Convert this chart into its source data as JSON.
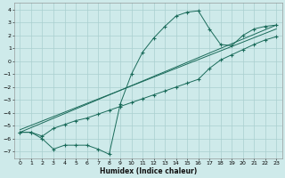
{
  "xlabel": "Humidex (Indice chaleur)",
  "bg_color": "#ceeaea",
  "grid_color": "#aacfcf",
  "line_color": "#1a6b5a",
  "xlim": [
    -0.5,
    23.5
  ],
  "ylim": [
    -7.5,
    4.5
  ],
  "xticks": [
    0,
    1,
    2,
    3,
    4,
    5,
    6,
    7,
    8,
    9,
    10,
    11,
    12,
    13,
    14,
    15,
    16,
    17,
    18,
    19,
    20,
    21,
    22,
    23
  ],
  "yticks": [
    -7,
    -6,
    -5,
    -4,
    -3,
    -2,
    -1,
    0,
    1,
    2,
    3,
    4
  ],
  "series1_x": [
    0,
    1,
    2,
    3,
    4,
    5,
    6,
    7,
    8,
    9,
    10,
    11,
    12,
    13,
    14,
    15,
    16,
    17,
    18,
    19,
    20,
    21,
    22,
    23
  ],
  "series1_y": [
    -5.5,
    -5.5,
    -6.0,
    -6.8,
    -6.5,
    -6.5,
    -6.5,
    -6.8,
    -7.2,
    -3.3,
    -1.0,
    0.7,
    1.8,
    2.7,
    3.5,
    3.8,
    3.9,
    2.5,
    1.3,
    1.2,
    2.0,
    2.5,
    2.7,
    2.8
  ],
  "series2_x": [
    0,
    1,
    2,
    3,
    4,
    5,
    6,
    7,
    8,
    9,
    10,
    11,
    12,
    13,
    14,
    15,
    16,
    17,
    18,
    19,
    20,
    21,
    22,
    23
  ],
  "series2_y": [
    -5.5,
    -5.5,
    -5.8,
    -5.2,
    -4.9,
    -4.6,
    -4.4,
    -4.1,
    -3.8,
    -3.5,
    -3.2,
    -2.9,
    -2.6,
    -2.3,
    -2.0,
    -1.7,
    -1.4,
    -0.55,
    0.1,
    0.5,
    0.9,
    1.3,
    1.65,
    1.9
  ],
  "series3_x": [
    0,
    23
  ],
  "series3_y": [
    -5.5,
    2.8
  ],
  "series4_x": [
    0,
    23
  ],
  "series4_y": [
    -5.3,
    2.5
  ]
}
